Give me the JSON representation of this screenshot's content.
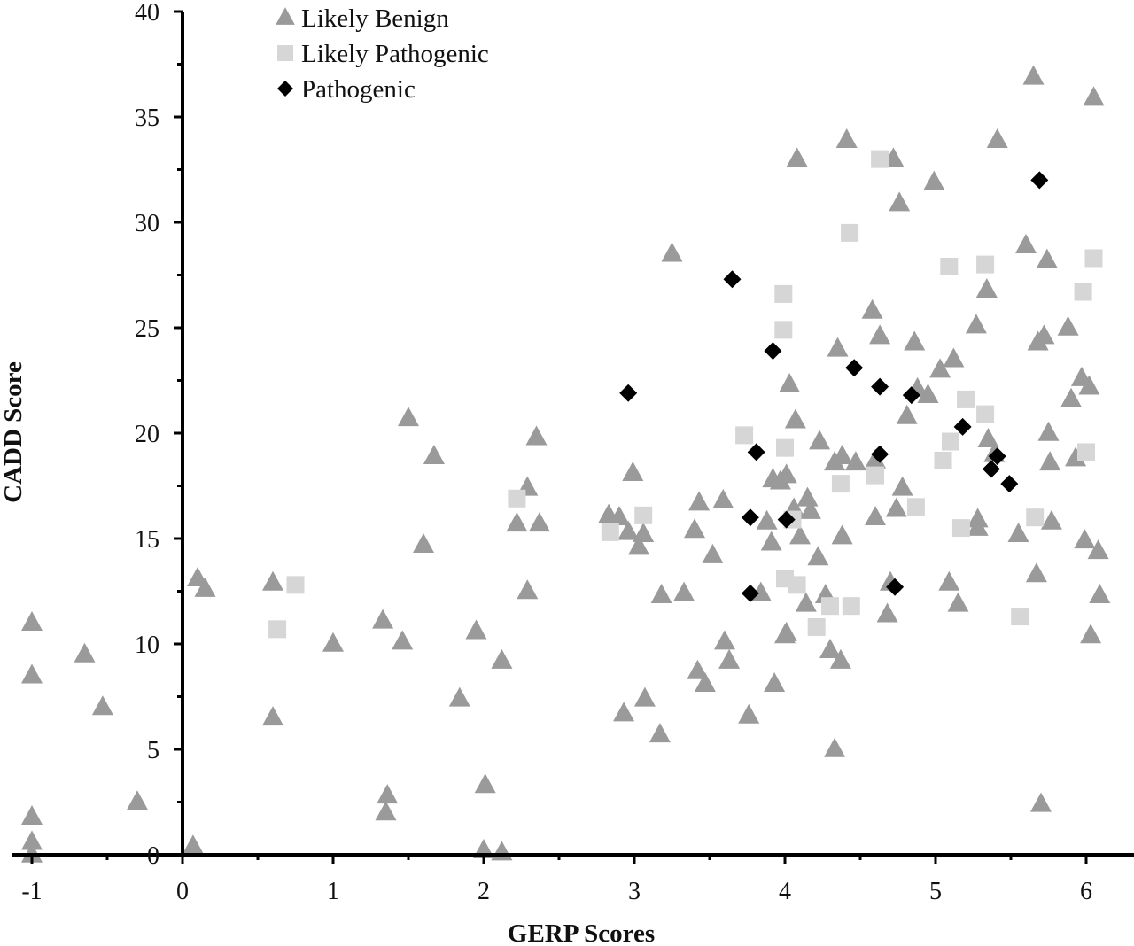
{
  "chart_data": {
    "type": "scatter",
    "title": "",
    "xlabel": "GERP Scores",
    "ylabel": "CADD Score",
    "xlim": [
      -1,
      6.3
    ],
    "ylim": [
      0,
      40
    ],
    "x_ticks": [
      "-1",
      "0",
      "1",
      "2",
      "3",
      "4",
      "5",
      "6"
    ],
    "y_ticks": [
      "0",
      "5",
      "10",
      "15",
      "20",
      "25",
      "30",
      "35",
      "40"
    ],
    "grid": false,
    "legend_position": "top-left",
    "series": [
      {
        "name": "Likely Benign",
        "marker": "triangle",
        "color": "#9a9a9a",
        "points": [
          [
            -1.0,
            11.0
          ],
          [
            -1.0,
            8.5
          ],
          [
            -1.0,
            1.8
          ],
          [
            -1.0,
            0.6
          ],
          [
            -1.0,
            0.0
          ],
          [
            -0.65,
            9.5
          ],
          [
            -0.53,
            7.0
          ],
          [
            -0.3,
            2.5
          ],
          [
            0.07,
            0.4
          ],
          [
            0.1,
            13.1
          ],
          [
            0.15,
            12.6
          ],
          [
            0.6,
            12.9
          ],
          [
            0.6,
            6.5
          ],
          [
            1.0,
            10.0
          ],
          [
            1.33,
            11.1
          ],
          [
            1.36,
            2.8
          ],
          [
            1.35,
            2.0
          ],
          [
            1.46,
            10.1
          ],
          [
            1.5,
            20.7
          ],
          [
            1.6,
            14.7
          ],
          [
            1.67,
            18.9
          ],
          [
            1.84,
            7.4
          ],
          [
            1.95,
            10.6
          ],
          [
            2.01,
            3.3
          ],
          [
            2.0,
            0.2
          ],
          [
            2.12,
            9.2
          ],
          [
            2.12,
            0.1
          ],
          [
            2.22,
            15.7
          ],
          [
            2.29,
            17.4
          ],
          [
            2.29,
            12.5
          ],
          [
            2.35,
            19.8
          ],
          [
            2.37,
            15.7
          ],
          [
            2.83,
            16.1
          ],
          [
            2.9,
            16.0
          ],
          [
            2.93,
            6.7
          ],
          [
            2.96,
            15.3
          ],
          [
            2.99,
            18.1
          ],
          [
            3.03,
            14.6
          ],
          [
            3.06,
            15.2
          ],
          [
            3.07,
            7.4
          ],
          [
            3.17,
            5.7
          ],
          [
            3.18,
            12.3
          ],
          [
            3.25,
            28.5
          ],
          [
            3.33,
            12.4
          ],
          [
            3.4,
            15.4
          ],
          [
            3.42,
            8.7
          ],
          [
            3.43,
            16.7
          ],
          [
            3.47,
            8.1
          ],
          [
            3.52,
            14.2
          ],
          [
            3.59,
            16.8
          ],
          [
            3.6,
            10.1
          ],
          [
            3.63,
            9.2
          ],
          [
            3.76,
            6.6
          ],
          [
            3.84,
            12.4
          ],
          [
            3.88,
            15.8
          ],
          [
            3.91,
            14.8
          ],
          [
            3.92,
            17.8
          ],
          [
            3.93,
            8.1
          ],
          [
            3.97,
            17.7
          ],
          [
            4.0,
            10.4
          ],
          [
            4.01,
            10.5
          ],
          [
            4.01,
            18.0
          ],
          [
            4.03,
            22.3
          ],
          [
            4.06,
            16.4
          ],
          [
            4.07,
            20.6
          ],
          [
            4.08,
            33.0
          ],
          [
            4.1,
            15.1
          ],
          [
            4.14,
            11.9
          ],
          [
            4.15,
            16.9
          ],
          [
            4.17,
            16.3
          ],
          [
            4.22,
            14.1
          ],
          [
            4.23,
            19.6
          ],
          [
            4.27,
            12.3
          ],
          [
            4.3,
            9.7
          ],
          [
            4.33,
            18.6
          ],
          [
            4.33,
            5.0
          ],
          [
            4.35,
            24.0
          ],
          [
            4.38,
            18.9
          ],
          [
            4.37,
            9.2
          ],
          [
            4.38,
            15.1
          ],
          [
            4.41,
            33.9
          ],
          [
            4.47,
            18.6
          ],
          [
            4.58,
            25.8
          ],
          [
            4.6,
            18.7
          ],
          [
            4.6,
            16.0
          ],
          [
            4.63,
            24.6
          ],
          [
            4.68,
            11.4
          ],
          [
            4.72,
            33.0
          ],
          [
            4.7,
            12.9
          ],
          [
            4.74,
            16.4
          ],
          [
            4.76,
            30.9
          ],
          [
            4.78,
            17.4
          ],
          [
            4.81,
            20.8
          ],
          [
            4.86,
            24.3
          ],
          [
            4.88,
            22.1
          ],
          [
            4.95,
            21.8
          ],
          [
            4.99,
            31.9
          ],
          [
            5.03,
            23.0
          ],
          [
            5.09,
            12.9
          ],
          [
            5.12,
            23.5
          ],
          [
            5.15,
            11.9
          ],
          [
            5.27,
            25.1
          ],
          [
            5.28,
            15.9
          ],
          [
            5.28,
            15.5
          ],
          [
            5.34,
            26.8
          ],
          [
            5.35,
            19.7
          ],
          [
            5.41,
            33.9
          ],
          [
            5.39,
            19.0
          ],
          [
            5.55,
            15.2
          ],
          [
            5.6,
            28.9
          ],
          [
            5.65,
            36.9
          ],
          [
            5.67,
            13.3
          ],
          [
            5.68,
            24.3
          ],
          [
            5.7,
            2.4
          ],
          [
            5.72,
            24.6
          ],
          [
            5.74,
            28.2
          ],
          [
            5.75,
            20.0
          ],
          [
            5.76,
            18.6
          ],
          [
            5.77,
            15.8
          ],
          [
            5.88,
            25.0
          ],
          [
            5.9,
            21.6
          ],
          [
            5.93,
            18.8
          ],
          [
            5.97,
            22.6
          ],
          [
            5.99,
            14.9
          ],
          [
            6.02,
            22.2
          ],
          [
            6.03,
            10.4
          ],
          [
            6.05,
            35.9
          ],
          [
            6.08,
            14.4
          ],
          [
            6.09,
            12.3
          ]
        ]
      },
      {
        "name": "Likely Pathogenic",
        "marker": "square",
        "color": "#d6d6d6",
        "points": [
          [
            0.63,
            10.7
          ],
          [
            0.75,
            12.8
          ],
          [
            2.22,
            16.9
          ],
          [
            2.84,
            15.3
          ],
          [
            3.06,
            16.1
          ],
          [
            3.73,
            19.9
          ],
          [
            3.99,
            24.9
          ],
          [
            3.99,
            26.6
          ],
          [
            4.0,
            19.3
          ],
          [
            4.0,
            13.1
          ],
          [
            4.08,
            12.8
          ],
          [
            4.05,
            15.9
          ],
          [
            4.21,
            10.8
          ],
          [
            4.3,
            11.8
          ],
          [
            4.37,
            17.6
          ],
          [
            4.43,
            29.5
          ],
          [
            4.44,
            11.8
          ],
          [
            4.6,
            18.0
          ],
          [
            4.63,
            33.0
          ],
          [
            4.87,
            16.5
          ],
          [
            5.05,
            18.7
          ],
          [
            5.09,
            27.9
          ],
          [
            5.1,
            19.6
          ],
          [
            5.17,
            15.5
          ],
          [
            5.2,
            21.6
          ],
          [
            5.33,
            28.0
          ],
          [
            5.33,
            20.9
          ],
          [
            5.56,
            11.3
          ],
          [
            5.66,
            16.0
          ],
          [
            5.98,
            26.7
          ],
          [
            6.0,
            19.1
          ],
          [
            6.05,
            28.3
          ]
        ]
      },
      {
        "name": "Pathogenic",
        "marker": "diamond",
        "color": "#000000",
        "points": [
          [
            2.96,
            21.9
          ],
          [
            3.65,
            27.3
          ],
          [
            3.77,
            16.0
          ],
          [
            3.77,
            12.4
          ],
          [
            3.81,
            19.1
          ],
          [
            3.92,
            23.9
          ],
          [
            4.01,
            15.9
          ],
          [
            4.46,
            23.1
          ],
          [
            4.63,
            22.2
          ],
          [
            4.63,
            19.0
          ],
          [
            4.73,
            12.7
          ],
          [
            4.84,
            21.8
          ],
          [
            5.18,
            20.3
          ],
          [
            5.37,
            18.3
          ],
          [
            5.41,
            18.9
          ],
          [
            5.49,
            17.6
          ],
          [
            5.69,
            32.0
          ]
        ]
      }
    ]
  }
}
